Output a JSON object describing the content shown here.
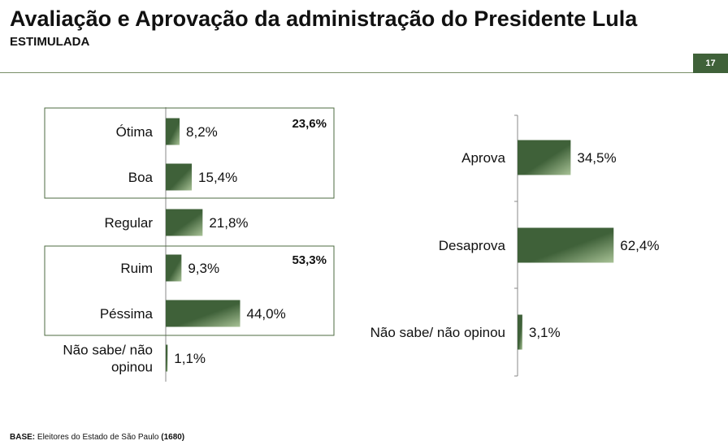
{
  "header": {
    "title": "Avaliação e Aprovação da administração do Presidente Lula",
    "subtitle": "ESTIMULADA",
    "page_number": "17"
  },
  "footnote": {
    "base_label": "BASE:",
    "base_text": " Eleitores do Estado de São Paulo ",
    "base_n": "(1680)"
  },
  "colors": {
    "bar_dark": "#3f6139",
    "bar_light": "#a8c296",
    "frame": "#4e6b40",
    "axis": "#888888"
  },
  "chart_data": [
    {
      "type": "bar",
      "orientation": "horizontal",
      "categories": [
        "Ótima",
        "Boa",
        "Regular",
        "Ruim",
        "Péssima",
        "Não sabe/ não opinou"
      ],
      "category_lines": [
        [
          "Ótima"
        ],
        [
          "Boa"
        ],
        [
          "Regular"
        ],
        [
          "Ruim"
        ],
        [
          "Péssima"
        ],
        [
          "Não sabe/ não",
          "opinou"
        ]
      ],
      "values": [
        8.2,
        15.4,
        21.8,
        9.3,
        44.0,
        1.1
      ],
      "value_labels": [
        "8,2%",
        "15,4%",
        "21,8%",
        "9,3%",
        "44,0%",
        "1,1%"
      ],
      "groups": [
        {
          "members": [
            0,
            1
          ],
          "total_label": "23,6%"
        },
        {
          "members": [
            3,
            4
          ],
          "total_label": "53,3%"
        }
      ],
      "unit": "%",
      "xlim": [
        0,
        100
      ]
    },
    {
      "type": "bar",
      "orientation": "horizontal",
      "categories": [
        "Aprova",
        "Desaprova",
        "Não sabe/ não opinou"
      ],
      "values": [
        34.5,
        62.4,
        3.1
      ],
      "value_labels": [
        "34,5%",
        "62,4%",
        "3,1%"
      ],
      "unit": "%",
      "xlim": [
        0,
        100
      ]
    }
  ]
}
